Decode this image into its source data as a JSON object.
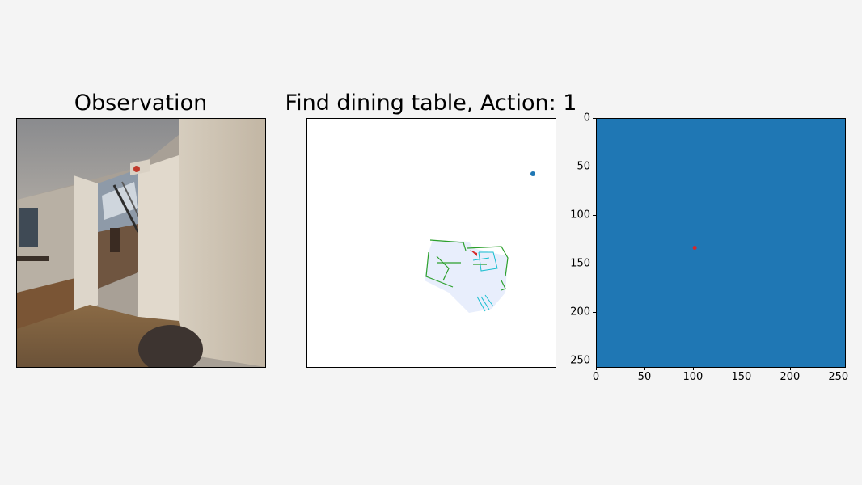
{
  "panels": {
    "observation": {
      "title": "Observation"
    },
    "semantic_map": {
      "title": "Find dining table, Action: 1",
      "goal_marker_color": "#1f77b4",
      "agent_marker_color": "#d62728",
      "obstacle_color": "#2ca02c",
      "goal_object_color": "#17becf",
      "explored_color": "#e8eefc"
    },
    "value_map": {
      "fill_color": "#1f77b4",
      "marker_color": "#d62728"
    }
  },
  "chart_data": {
    "type": "heatmap",
    "title": "",
    "xlabel": "",
    "ylabel": "",
    "xlim": [
      0,
      256
    ],
    "ylim": [
      256,
      0
    ],
    "x_ticks": [
      "0",
      "50",
      "100",
      "150",
      "200",
      "250"
    ],
    "y_ticks": [
      "0",
      "50",
      "100",
      "150",
      "200",
      "250"
    ],
    "points": [
      {
        "x": 101,
        "y": 133
      }
    ]
  }
}
